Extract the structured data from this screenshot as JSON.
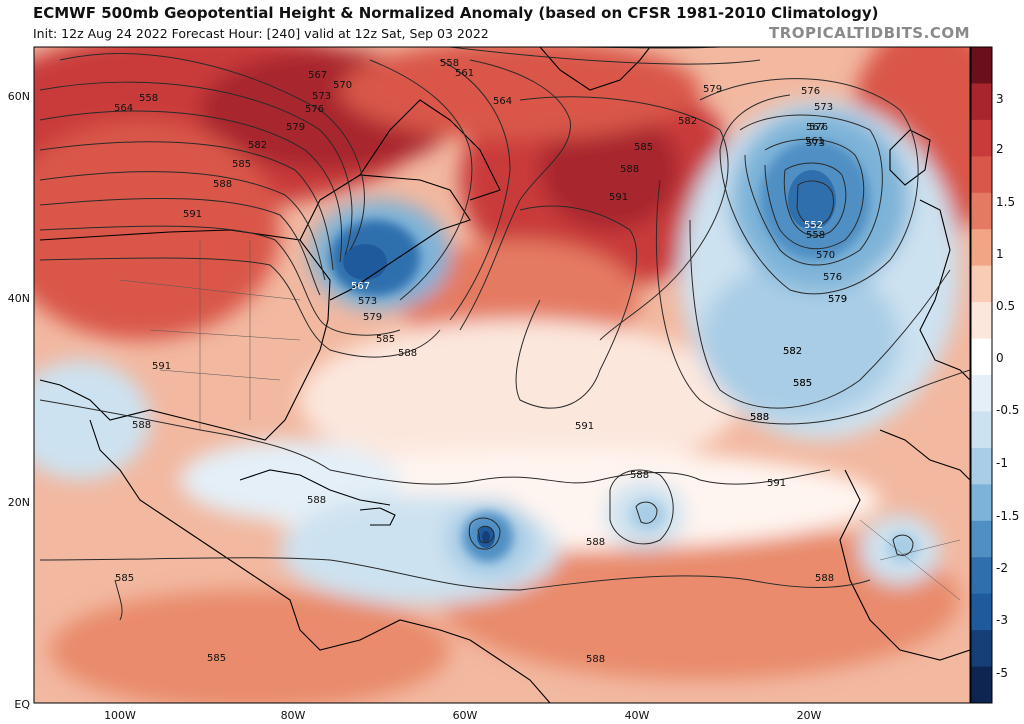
{
  "header": {
    "title": "ECMWF 500mb Geopotential Height & Normalized Anomaly (based on CFSR 1981-2010 Climatology)",
    "subtitle": "Init: 12z Aug 24 2022   Forecast Hour: [240]   valid at 12z Sat, Sep 03 2022",
    "brand": "TROPICALTIDBITS.COM"
  },
  "colors": {
    "strong_positive": "#a8252e",
    "positive": "#d9564a",
    "weak_positive": "#f2a585",
    "neutral": "#fce7dd",
    "weak_negative": "#cde2f0",
    "negative": "#7db3d8",
    "strong_negative": "#1f5b9c",
    "land_outline": "#000000",
    "contour": "#333333"
  },
  "axes": {
    "lat_labels": [
      "60N",
      "40N",
      "20N",
      "EQ"
    ],
    "lon_labels": [
      "100W",
      "80W",
      "60W",
      "40W",
      "20W"
    ]
  },
  "colorbar": {
    "labels": [
      "3",
      "2",
      "1.5",
      "1",
      "0.5",
      "0",
      "-0.5",
      "-1",
      "-1.5",
      "-2",
      "-3",
      "-5"
    ],
    "colors": [
      "#6b0f1c",
      "#a8252e",
      "#c93b3a",
      "#d9564a",
      "#e57a62",
      "#f2a585",
      "#f9ccb6",
      "#fce7dd",
      "#ffffff",
      "#e4eff7",
      "#cde2f0",
      "#a9cde6",
      "#7db3d8",
      "#4f8fc4",
      "#2f6fae",
      "#1f5b9c",
      "#163f78",
      "#0d2550"
    ]
  },
  "contour_labels": {
    "north": [
      "558",
      "561",
      "564",
      "567",
      "570",
      "573",
      "576",
      "579",
      "582",
      "585",
      "588",
      "591",
      "564",
      "558"
    ],
    "trough": [
      "567",
      "573",
      "579",
      "585",
      "588"
    ],
    "atlantic": [
      "585",
      "588",
      "591",
      "582",
      "579",
      "576",
      "573",
      "579",
      "582",
      "585",
      "588",
      "591"
    ],
    "low": [
      "576",
      "573",
      "567",
      "561",
      "552",
      "558",
      "570",
      "576",
      "579",
      "582",
      "585",
      "588"
    ],
    "tropics": [
      "591",
      "588",
      "588",
      "588",
      "585",
      "585",
      "588",
      "591",
      "588",
      "588"
    ]
  }
}
